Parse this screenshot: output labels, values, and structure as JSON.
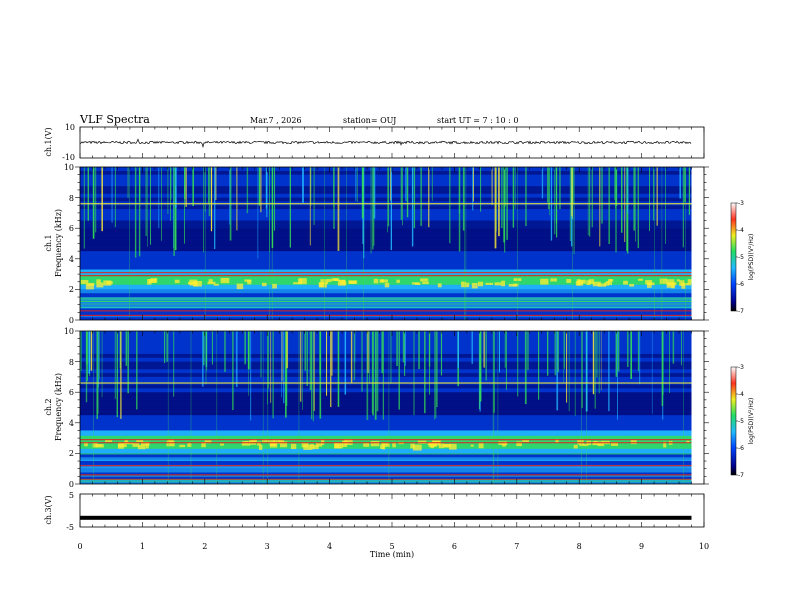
{
  "header": {
    "title": "VLF Spectra",
    "date": "Mar.7  , 2026",
    "station": "station= OUJ",
    "start": "start  UT  =   7 : 10 : 0"
  },
  "chart_data": [
    {
      "type": "line",
      "name": "ch1-waveform",
      "ylabel": "ch.1(V)",
      "ylim": [
        -10,
        10
      ],
      "yticks": [
        "10",
        "-10"
      ],
      "signal_level": 0,
      "noise_amplitude": 0.8
    },
    {
      "type": "heatmap",
      "name": "ch1-spectrogram",
      "ylabel_line1": "ch.1",
      "ylabel_line2": "Frequency  (kHz)",
      "ylim": [
        0,
        10
      ],
      "yticks": [
        "0",
        "2",
        "4",
        "6",
        "8",
        "10"
      ],
      "colorbar": {
        "label": "log(PSD)(V²/Hz)",
        "range": [
          -7,
          -3
        ],
        "ticks": [
          "-3",
          "-4",
          "-5",
          "-6",
          "-7"
        ]
      },
      "emission_band_khz": [
        2,
        3.3
      ],
      "strong_lines_khz": [
        0.3,
        0.6,
        2.9,
        3.1,
        7.6
      ]
    },
    {
      "type": "heatmap",
      "name": "ch2-spectrogram",
      "ylabel_line1": "ch.2",
      "ylabel_line2": "Frequency  (kHz)",
      "ylim": [
        0,
        10
      ],
      "yticks": [
        "0",
        "2",
        "4",
        "6",
        "8",
        "10"
      ],
      "colorbar": {
        "label": "log(PSD)(V²/Hz)",
        "range": [
          -7,
          -3
        ],
        "ticks": [
          "-3",
          "-4",
          "-5",
          "-6",
          "-7"
        ]
      },
      "emission_band_khz": [
        2,
        3.5
      ],
      "strong_lines_khz": [
        0.3,
        0.6,
        1.2,
        2.7,
        2.9,
        6.6
      ]
    },
    {
      "type": "line",
      "name": "ch3-waveform",
      "ylabel": "ch.3(V)",
      "ylim": [
        -5,
        5
      ],
      "yticks": [
        "5",
        "0",
        "-5"
      ],
      "signal_level": -2.2,
      "noise_amplitude": 0.15
    }
  ],
  "xaxis": {
    "label": "Time  (min)",
    "xlim": [
      0,
      10
    ],
    "ticks": [
      "0",
      "1",
      "2",
      "3",
      "4",
      "5",
      "6",
      "7",
      "8",
      "9",
      "10"
    ],
    "data_end_min": 9.8
  },
  "colors": {
    "background": "#ffffff",
    "axis": "#000000",
    "deep": "#000066",
    "low": "#0033cc",
    "mid": "#22bbff",
    "green": "#33dd55",
    "yellow": "#ffee33",
    "red": "#dd2222"
  }
}
